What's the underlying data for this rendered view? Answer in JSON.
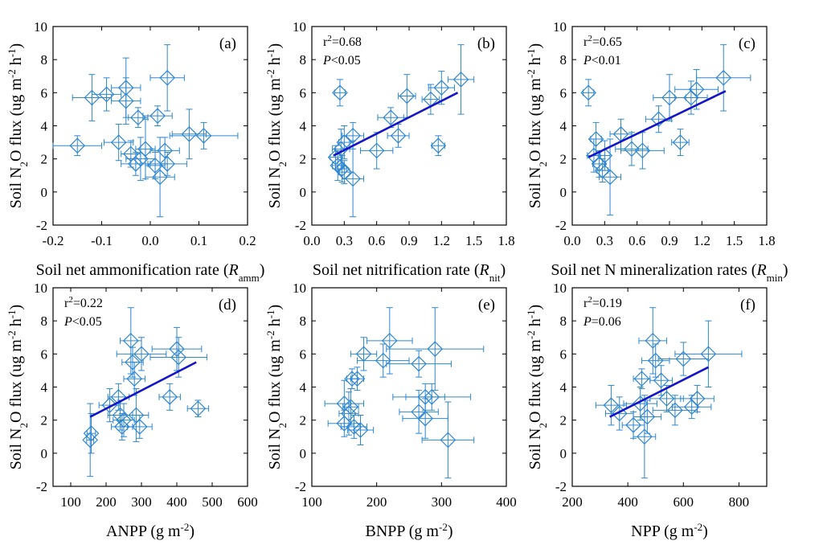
{
  "y_axis_label": "Soil N2O flux (ug m-2 h-1)",
  "colors": {
    "marker": "#2e86d1",
    "fit": "#1414c8",
    "axis": "#000000"
  },
  "chart_data": [
    {
      "type": "scatter",
      "panel_label": "(a)",
      "xlabel": "Soil net ammonification rate (Ramm)",
      "xlabel_parts": {
        "main": "Soil net ammonification rate (",
        "italic": "R",
        "sub": "amm",
        "end": ")"
      },
      "xlim": [
        -0.2,
        0.2
      ],
      "ylim": [
        -2,
        10
      ],
      "xticks": [
        "-0.2",
        "-0.1",
        "0.0",
        "0.1",
        "0.2"
      ],
      "xtick_values": [
        -0.2,
        -0.1,
        0.0,
        0.1,
        0.2
      ],
      "yticks": [
        "-2",
        "0",
        "2",
        "4",
        "6",
        "8",
        "10"
      ],
      "stats": null,
      "fit": null,
      "points": [
        {
          "x": -0.15,
          "y": 2.8,
          "xerr": 0.05,
          "yerr": 0.6
        },
        {
          "x": -0.12,
          "y": 5.7,
          "xerr": 0.04,
          "yerr": 1.4
        },
        {
          "x": -0.09,
          "y": 5.9,
          "xerr": 0.03,
          "yerr": 1.0
        },
        {
          "x": -0.065,
          "y": 3.0,
          "xerr": 0.03,
          "yerr": 1.1
        },
        {
          "x": -0.05,
          "y": 6.3,
          "xerr": 0.03,
          "yerr": 1.8
        },
        {
          "x": -0.05,
          "y": 5.5,
          "xerr": 0.03,
          "yerr": 1.4
        },
        {
          "x": -0.04,
          "y": 2.3,
          "xerr": 0.02,
          "yerr": 0.8
        },
        {
          "x": -0.03,
          "y": 1.7,
          "xerr": 0.03,
          "yerr": 0.7
        },
        {
          "x": -0.025,
          "y": 4.5,
          "xerr": 0.02,
          "yerr": 0.6
        },
        {
          "x": -0.02,
          "y": 2.0,
          "xerr": 0.03,
          "yerr": 1.3
        },
        {
          "x": -0.01,
          "y": 2.6,
          "xerr": 0.02,
          "yerr": 1.8
        },
        {
          "x": 0.01,
          "y": 1.6,
          "xerr": 0.02,
          "yerr": 0.8
        },
        {
          "x": 0.02,
          "y": 0.9,
          "xerr": 0.03,
          "yerr": 2.4
        },
        {
          "x": 0.015,
          "y": 4.6,
          "xerr": 0.03,
          "yerr": 0.6
        },
        {
          "x": 0.03,
          "y": 2.5,
          "xerr": 0.03,
          "yerr": 0.8
        },
        {
          "x": 0.035,
          "y": 1.7,
          "xerr": 0.04,
          "yerr": 0.7
        },
        {
          "x": 0.035,
          "y": 6.9,
          "xerr": 0.035,
          "yerr": 2.0
        },
        {
          "x": 0.08,
          "y": 3.5,
          "xerr": 0.035,
          "yerr": 1.5
        },
        {
          "x": 0.11,
          "y": 3.4,
          "xerr": 0.07,
          "yerr": 0.8
        }
      ]
    },
    {
      "type": "scatter",
      "panel_label": "(b)",
      "xlabel": "Soil net nitrification rate (Rnit)",
      "xlabel_parts": {
        "main": "Soil net nitrification rate (",
        "italic": "R",
        "sub": "nit",
        "end": ")"
      },
      "xlim": [
        0.0,
        1.8
      ],
      "ylim": [
        -2,
        10
      ],
      "xticks": [
        "0.0",
        "0.3",
        "0.6",
        "0.9",
        "1.2",
        "1.5",
        "1.8"
      ],
      "xtick_values": [
        0.0,
        0.3,
        0.6,
        0.9,
        1.2,
        1.5,
        1.8
      ],
      "yticks": [
        "-2",
        "0",
        "2",
        "4",
        "6",
        "8",
        "10"
      ],
      "stats": {
        "r2": "r2=0.68",
        "r2_base": "r",
        "r2_sup": "2",
        "r2_val": "=0.68",
        "p": "P<0.05",
        "p_sym": "P",
        "p_val": "<0.05"
      },
      "fit": {
        "x": [
          0.2,
          1.35
        ],
        "y": [
          2.2,
          6.0
        ]
      },
      "points": [
        {
          "x": 0.22,
          "y": 2.1,
          "xerr": 0.05,
          "yerr": 0.7
        },
        {
          "x": 0.24,
          "y": 1.6,
          "xerr": 0.05,
          "yerr": 0.9
        },
        {
          "x": 0.26,
          "y": 6.0,
          "xerr": 0.05,
          "yerr": 0.8
        },
        {
          "x": 0.27,
          "y": 2.6,
          "xerr": 0.08,
          "yerr": 1.2
        },
        {
          "x": 0.28,
          "y": 1.4,
          "xerr": 0.04,
          "yerr": 0.8
        },
        {
          "x": 0.3,
          "y": 3.0,
          "xerr": 0.05,
          "yerr": 1.0
        },
        {
          "x": 0.3,
          "y": 1.2,
          "xerr": 0.05,
          "yerr": 0.7
        },
        {
          "x": 0.38,
          "y": 3.4,
          "xerr": 0.1,
          "yerr": 0.8
        },
        {
          "x": 0.38,
          "y": 0.8,
          "xerr": 0.1,
          "yerr": 2.3
        },
        {
          "x": 0.6,
          "y": 2.5,
          "xerr": 0.15,
          "yerr": 1.1
        },
        {
          "x": 0.73,
          "y": 4.5,
          "xerr": 0.12,
          "yerr": 0.6
        },
        {
          "x": 0.8,
          "y": 3.4,
          "xerr": 0.1,
          "yerr": 0.7
        },
        {
          "x": 0.88,
          "y": 5.8,
          "xerr": 0.08,
          "yerr": 1.3
        },
        {
          "x": 1.1,
          "y": 5.6,
          "xerr": 0.08,
          "yerr": 0.9
        },
        {
          "x": 1.17,
          "y": 2.8,
          "xerr": 0.06,
          "yerr": 0.6
        },
        {
          "x": 1.2,
          "y": 6.3,
          "xerr": 0.12,
          "yerr": 1.0
        },
        {
          "x": 1.38,
          "y": 6.8,
          "xerr": 0.12,
          "yerr": 2.1
        }
      ]
    },
    {
      "type": "scatter",
      "panel_label": "(c)",
      "xlabel": "Soil net N mineralization rates (Rmin)",
      "xlabel_parts": {
        "main": "Soil net N mineralization rates (",
        "italic": "R",
        "sub": "min",
        "end": ")"
      },
      "xlim": [
        0.0,
        1.8
      ],
      "ylim": [
        -2,
        10
      ],
      "xticks": [
        "0.0",
        "0.3",
        "0.6",
        "0.9",
        "1.2",
        "1.5",
        "1.8"
      ],
      "xtick_values": [
        0.0,
        0.3,
        0.6,
        0.9,
        1.2,
        1.5,
        1.8
      ],
      "yticks": [
        "-2",
        "0",
        "2",
        "4",
        "6",
        "8",
        "10"
      ],
      "stats": {
        "r2": "r2=0.65",
        "r2_base": "r",
        "r2_sup": "2",
        "r2_val": "=0.65",
        "p": "P<0.01",
        "p_sym": "P",
        "p_val": "<0.01"
      },
      "fit": {
        "x": [
          0.15,
          1.42
        ],
        "y": [
          2.1,
          6.1
        ]
      },
      "points": [
        {
          "x": 0.15,
          "y": 6.0,
          "xerr": 0.05,
          "yerr": 0.8
        },
        {
          "x": 0.2,
          "y": 2.2,
          "xerr": 0.06,
          "yerr": 1.0
        },
        {
          "x": 0.22,
          "y": 3.2,
          "xerr": 0.05,
          "yerr": 1.0
        },
        {
          "x": 0.25,
          "y": 1.7,
          "xerr": 0.06,
          "yerr": 0.8
        },
        {
          "x": 0.28,
          "y": 1.3,
          "xerr": 0.05,
          "yerr": 0.7
        },
        {
          "x": 0.3,
          "y": 2.2,
          "xerr": 0.05,
          "yerr": 0.9
        },
        {
          "x": 0.35,
          "y": 0.9,
          "xerr": 0.1,
          "yerr": 2.3
        },
        {
          "x": 0.45,
          "y": 3.5,
          "xerr": 0.1,
          "yerr": 0.9
        },
        {
          "x": 0.55,
          "y": 2.6,
          "xerr": 0.15,
          "yerr": 1.0
        },
        {
          "x": 0.65,
          "y": 2.5,
          "xerr": 0.2,
          "yerr": 1.1
        },
        {
          "x": 0.8,
          "y": 4.4,
          "xerr": 0.12,
          "yerr": 0.8
        },
        {
          "x": 0.9,
          "y": 5.7,
          "xerr": 0.15,
          "yerr": 1.4
        },
        {
          "x": 1.0,
          "y": 3.0,
          "xerr": 0.08,
          "yerr": 0.8
        },
        {
          "x": 1.1,
          "y": 5.7,
          "xerr": 0.15,
          "yerr": 1.0
        },
        {
          "x": 1.15,
          "y": 6.2,
          "xerr": 0.2,
          "yerr": 1.2
        },
        {
          "x": 1.4,
          "y": 6.9,
          "xerr": 0.25,
          "yerr": 2.0
        }
      ]
    },
    {
      "type": "scatter",
      "panel_label": "(d)",
      "xlabel": "ANPP (g m-2)",
      "xlabel_parts": {
        "main": "ANPP (g m",
        "sup": "-2",
        "end": ")"
      },
      "xlim": [
        50,
        600
      ],
      "ylim": [
        -2,
        10
      ],
      "xticks": [
        "100",
        "200",
        "300",
        "400",
        "500",
        "600"
      ],
      "xtick_values": [
        100,
        200,
        300,
        400,
        500,
        600
      ],
      "yticks": [
        "-2",
        "0",
        "2",
        "4",
        "6",
        "8",
        "10"
      ],
      "stats": {
        "r2": "r2=0.22",
        "r2_base": "r",
        "r2_sup": "2",
        "r2_val": "=0.22",
        "p": "P<0.05",
        "p_sym": "P",
        "p_val": "<0.05"
      },
      "fit": {
        "x": [
          155,
          455
        ],
        "y": [
          2.2,
          5.5
        ]
      },
      "points": [
        {
          "x": 155,
          "y": 0.8,
          "xerr": 10,
          "yerr": 2.2
        },
        {
          "x": 158,
          "y": 1.2,
          "xerr": 12,
          "yerr": 1.2
        },
        {
          "x": 210,
          "y": 2.9,
          "xerr": 30,
          "yerr": 1.0
        },
        {
          "x": 235,
          "y": 3.4,
          "xerr": 30,
          "yerr": 0.8
        },
        {
          "x": 240,
          "y": 2.3,
          "xerr": 35,
          "yerr": 0.9
        },
        {
          "x": 245,
          "y": 1.6,
          "xerr": 30,
          "yerr": 0.8
        },
        {
          "x": 250,
          "y": 2.0,
          "xerr": 30,
          "yerr": 1.0
        },
        {
          "x": 270,
          "y": 6.8,
          "xerr": 30,
          "yerr": 2.0
        },
        {
          "x": 275,
          "y": 5.5,
          "xerr": 30,
          "yerr": 0.9
        },
        {
          "x": 280,
          "y": 4.5,
          "xerr": 30,
          "yerr": 1.0
        },
        {
          "x": 285,
          "y": 2.3,
          "xerr": 35,
          "yerr": 1.6
        },
        {
          "x": 295,
          "y": 1.6,
          "xerr": 35,
          "yerr": 0.7
        },
        {
          "x": 300,
          "y": 6.0,
          "xerr": 70,
          "yerr": 1.0
        },
        {
          "x": 380,
          "y": 3.4,
          "xerr": 30,
          "yerr": 0.8
        },
        {
          "x": 400,
          "y": 6.3,
          "xerr": 70,
          "yerr": 1.3
        },
        {
          "x": 405,
          "y": 5.8,
          "xerr": 80,
          "yerr": 1.2
        },
        {
          "x": 460,
          "y": 2.7,
          "xerr": 30,
          "yerr": 0.5
        }
      ]
    },
    {
      "type": "scatter",
      "panel_label": "(e)",
      "xlabel": "BNPP (g m-2)",
      "xlabel_parts": {
        "main": "BNPP (g m",
        "sup": "-2",
        "end": ")"
      },
      "xlim": [
        100,
        400
      ],
      "ylim": [
        -2,
        10
      ],
      "xticks": [
        "100",
        "200",
        "300",
        "400"
      ],
      "xtick_values": [
        100,
        200,
        300,
        400
      ],
      "yticks": [
        "-2",
        "0",
        "2",
        "4",
        "6",
        "8",
        "10"
      ],
      "stats": null,
      "fit": null,
      "points": [
        {
          "x": 150,
          "y": 3.0,
          "xerr": 30,
          "yerr": 1.4
        },
        {
          "x": 150,
          "y": 1.8,
          "xerr": 25,
          "yerr": 0.8
        },
        {
          "x": 157,
          "y": 2.4,
          "xerr": 15,
          "yerr": 1.3
        },
        {
          "x": 160,
          "y": 2.8,
          "xerr": 12,
          "yerr": 1.1
        },
        {
          "x": 162,
          "y": 4.5,
          "xerr": 8,
          "yerr": 0.6
        },
        {
          "x": 165,
          "y": 1.6,
          "xerr": 20,
          "yerr": 0.7
        },
        {
          "x": 170,
          "y": 4.5,
          "xerr": 10,
          "yerr": 0.7
        },
        {
          "x": 175,
          "y": 1.4,
          "xerr": 20,
          "yerr": 0.9
        },
        {
          "x": 180,
          "y": 6.0,
          "xerr": 20,
          "yerr": 1.0
        },
        {
          "x": 210,
          "y": 5.6,
          "xerr": 40,
          "yerr": 1.0
        },
        {
          "x": 220,
          "y": 6.8,
          "xerr": 35,
          "yerr": 2.0
        },
        {
          "x": 265,
          "y": 5.4,
          "xerr": 50,
          "yerr": 0.8
        },
        {
          "x": 265,
          "y": 2.5,
          "xerr": 30,
          "yerr": 1.3
        },
        {
          "x": 275,
          "y": 3.4,
          "xerr": 30,
          "yerr": 0.8
        },
        {
          "x": 275,
          "y": 2.1,
          "xerr": 35,
          "yerr": 1.2
        },
        {
          "x": 285,
          "y": 3.4,
          "xerr": 60,
          "yerr": 0.8
        },
        {
          "x": 290,
          "y": 6.3,
          "xerr": 75,
          "yerr": 2.5
        },
        {
          "x": 310,
          "y": 0.8,
          "xerr": 40,
          "yerr": 2.3
        }
      ]
    },
    {
      "type": "scatter",
      "panel_label": "(f)",
      "xlabel": "NPP (g m-2)",
      "xlabel_parts": {
        "main": "NPP (g m",
        "sup": "-2",
        "end": ")"
      },
      "xlim": [
        200,
        900
      ],
      "ylim": [
        -2,
        10
      ],
      "xticks": [
        "200",
        "400",
        "600",
        "800"
      ],
      "xtick_values": [
        200,
        400,
        600,
        800
      ],
      "yticks": [
        "-2",
        "0",
        "2",
        "4",
        "6",
        "8",
        "10"
      ],
      "stats": {
        "r2": "r2=0.19",
        "r2_base": "r",
        "r2_sup": "2",
        "r2_val": "=0.19",
        "p": "P=0.06",
        "p_sym": "P",
        "p_val": "=0.06"
      },
      "fit": {
        "x": [
          335,
          690
        ],
        "y": [
          2.2,
          5.2
        ]
      },
      "points": [
        {
          "x": 340,
          "y": 2.9,
          "xerr": 55,
          "yerr": 1.2
        },
        {
          "x": 370,
          "y": 2.4,
          "xerr": 50,
          "yerr": 1.0
        },
        {
          "x": 420,
          "y": 1.7,
          "xerr": 40,
          "yerr": 0.8
        },
        {
          "x": 445,
          "y": 3.0,
          "xerr": 60,
          "yerr": 1.0
        },
        {
          "x": 450,
          "y": 4.5,
          "xerr": 30,
          "yerr": 0.6
        },
        {
          "x": 460,
          "y": 1.0,
          "xerr": 40,
          "yerr": 2.5
        },
        {
          "x": 470,
          "y": 2.2,
          "xerr": 50,
          "yerr": 1.0
        },
        {
          "x": 490,
          "y": 6.8,
          "xerr": 50,
          "yerr": 2.0
        },
        {
          "x": 500,
          "y": 5.6,
          "xerr": 50,
          "yerr": 1.0
        },
        {
          "x": 520,
          "y": 4.4,
          "xerr": 40,
          "yerr": 0.9
        },
        {
          "x": 540,
          "y": 3.3,
          "xerr": 60,
          "yerr": 0.8
        },
        {
          "x": 570,
          "y": 2.6,
          "xerr": 80,
          "yerr": 0.9
        },
        {
          "x": 600,
          "y": 5.7,
          "xerr": 90,
          "yerr": 1.0
        },
        {
          "x": 630,
          "y": 2.8,
          "xerr": 70,
          "yerr": 0.7
        },
        {
          "x": 650,
          "y": 3.3,
          "xerr": 60,
          "yerr": 0.8
        },
        {
          "x": 690,
          "y": 6.0,
          "xerr": 120,
          "yerr": 2.0
        }
      ]
    }
  ]
}
